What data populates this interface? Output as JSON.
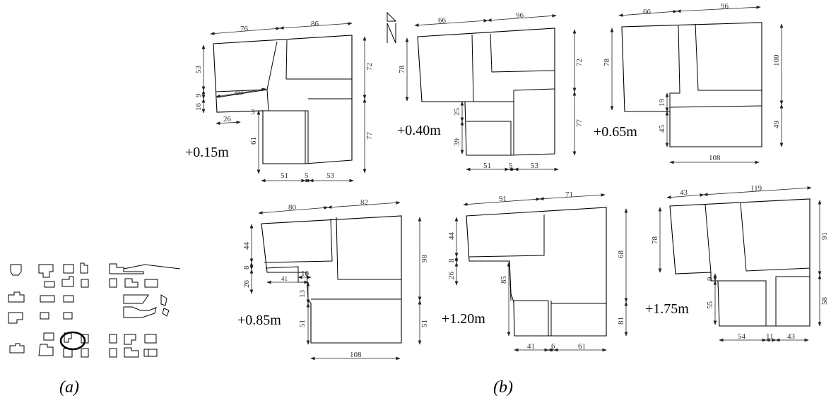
{
  "captions": {
    "a": "(a)",
    "b": "(b)"
  },
  "plans": [
    {
      "elevation": "+0.15m",
      "dims": [
        "76",
        "86",
        "53",
        "9",
        "16",
        "60",
        "26",
        "3",
        "72",
        "77",
        "61",
        "51",
        "5",
        "53"
      ]
    },
    {
      "elevation": "+0.40m",
      "dims": [
        "66",
        "96",
        "78",
        "72",
        "77",
        "25",
        "39",
        "51",
        "5",
        "53"
      ]
    },
    {
      "elevation": "+0.65m",
      "dims": [
        "66",
        "96",
        "78",
        "100",
        "19",
        "45",
        "49",
        "108"
      ]
    },
    {
      "elevation": "+0.85m",
      "dims": [
        "80",
        "82",
        "44",
        "8",
        "26",
        "10",
        "41",
        "13",
        "51",
        "98",
        "51",
        "108"
      ]
    },
    {
      "elevation": "+1.20m",
      "dims": [
        "91",
        "71",
        "44",
        "8",
        "26",
        "85",
        "68",
        "81",
        "41",
        "6",
        "61"
      ]
    },
    {
      "elevation": "+1.75m",
      "dims": [
        "43",
        "119",
        "78",
        "9",
        "55",
        "91",
        "58",
        "54",
        "11",
        "43"
      ]
    }
  ],
  "north_arrow": {
    "icon": "north-arrow-icon"
  }
}
